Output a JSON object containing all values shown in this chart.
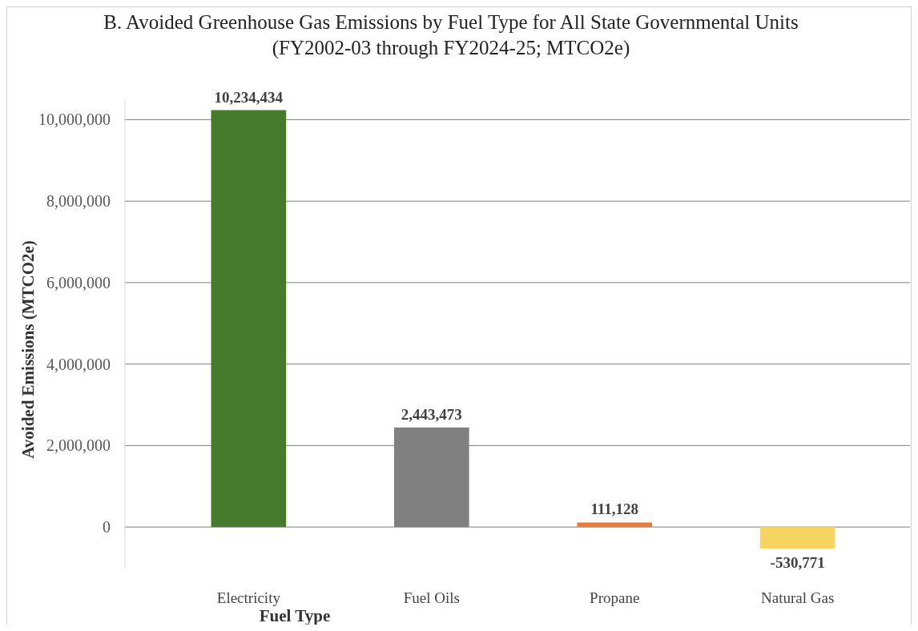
{
  "chart_data": {
    "type": "bar",
    "title": "B. Avoided Greenhouse Gas Emissions by Fuel Type for All State Governmental Units\n(FY2002-03 through FY2024-25; MTCO2e)",
    "xlabel": "Fuel Type",
    "ylabel": "Avoided Emissions (MTCO2e)",
    "categories": [
      "Electricity",
      "Fuel Oils",
      "Propane",
      "Natural Gas"
    ],
    "values": [
      10234434,
      2443473,
      111128,
      -530771
    ],
    "value_labels": [
      "10,234,434",
      "2,443,473",
      "111,128",
      "-530,771"
    ],
    "colors": [
      "#467a2c",
      "#808080",
      "#e97c37",
      "#f5d462"
    ],
    "ylim": [
      -1000000,
      10500000
    ],
    "yticks": [
      0,
      {
        "value": 2000000,
        "label": "2,000,000"
      },
      {
        "value": 4000000,
        "label": "4,000,000"
      },
      {
        "value": 6000000,
        "label": "6,000,000"
      },
      {
        "value": 8000000,
        "label": "8,000,000"
      },
      {
        "value": 10000000,
        "label": "10,000,000"
      }
    ],
    "grid": "y"
  }
}
